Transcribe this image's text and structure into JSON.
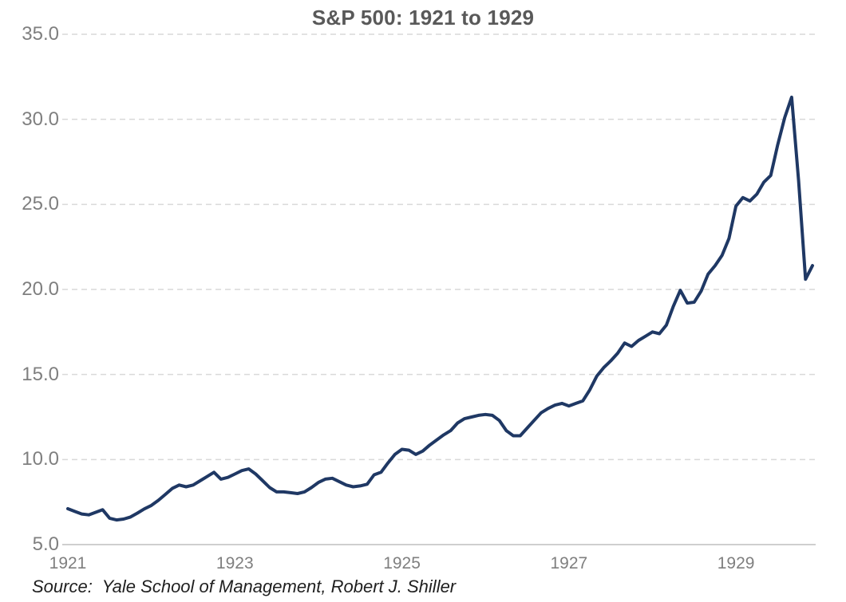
{
  "title": "S&P 500: 1921 to 1929",
  "source": "Source:  Yale School of Management, Robert J. Shiller",
  "colors": {
    "line": "#1F3864",
    "gridline": "#D9D9D9",
    "axis_line": "#BFBFBF",
    "title_text": "#595959",
    "tick_text": "#7F7F7F",
    "source_text": "#1F1F1F"
  },
  "chart_data": {
    "type": "line",
    "title": "S&P 500: 1921 to 1929",
    "xlabel": "",
    "ylabel": "",
    "frequency": "monthly",
    "x_start": "1921-01",
    "x_end": "1929-12",
    "ylim": [
      5.0,
      35.0
    ],
    "y_ticks": [
      5,
      10,
      15,
      20,
      25,
      30,
      35
    ],
    "y_tick_labels": [
      "5.0",
      "10.0",
      "15.0",
      "20.0",
      "25.0",
      "30.0",
      "35.0"
    ],
    "x_tick_months": [
      0,
      24,
      48,
      72,
      96
    ],
    "x_tick_labels": [
      "1921",
      "1923",
      "1925",
      "1927",
      "1929"
    ],
    "grid": "horizontal-dashed",
    "legend": "none",
    "series": [
      {
        "name": "S&P 500",
        "values": [
          7.11,
          6.95,
          6.8,
          6.75,
          6.9,
          7.05,
          6.55,
          6.45,
          6.5,
          6.62,
          6.85,
          7.1,
          7.3,
          7.6,
          7.95,
          8.3,
          8.5,
          8.4,
          8.5,
          8.75,
          9.0,
          9.25,
          8.85,
          8.95,
          9.15,
          9.35,
          9.45,
          9.15,
          8.75,
          8.35,
          8.1,
          8.1,
          8.05,
          8.0,
          8.1,
          8.35,
          8.65,
          8.85,
          8.9,
          8.7,
          8.5,
          8.4,
          8.45,
          8.55,
          9.1,
          9.25,
          9.8,
          10.3,
          10.6,
          10.55,
          10.3,
          10.5,
          10.85,
          11.15,
          11.45,
          11.7,
          12.15,
          12.4,
          12.5,
          12.6,
          12.65,
          12.6,
          12.3,
          11.7,
          11.4,
          11.4,
          11.85,
          12.3,
          12.75,
          13.0,
          13.2,
          13.3,
          13.15,
          13.3,
          13.45,
          14.1,
          14.9,
          15.4,
          15.8,
          16.25,
          16.85,
          16.65,
          17.0,
          17.25,
          17.5,
          17.4,
          17.9,
          19.0,
          19.95,
          19.2,
          19.25,
          19.9,
          20.9,
          21.4,
          22.0,
          23.0,
          24.9,
          25.4,
          25.2,
          25.6,
          26.3,
          26.7,
          28.5,
          30.1,
          31.3,
          26.4,
          20.6,
          21.4
        ]
      }
    ]
  }
}
